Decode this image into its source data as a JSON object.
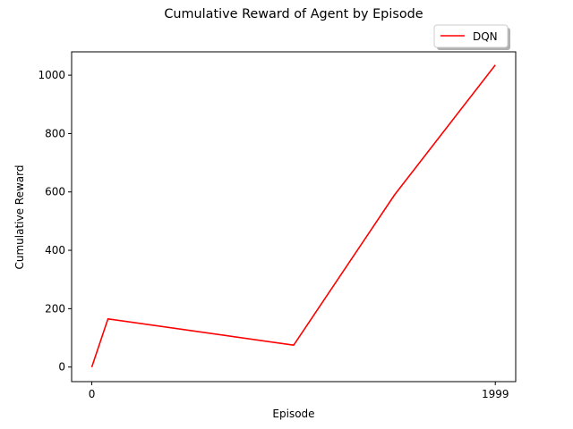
{
  "chart_data": {
    "type": "line",
    "title": "Cumulative Reward of Agent by Episode",
    "xlabel": "Episode",
    "ylabel": "Cumulative Reward",
    "xlim": [
      -100,
      2100
    ],
    "ylim": [
      -50,
      1080
    ],
    "x_ticks": [
      0,
      1999
    ],
    "y_ticks": [
      0,
      200,
      400,
      600,
      800,
      1000
    ],
    "grid": false,
    "legend_position": "top-right",
    "series": [
      {
        "name": "DQN",
        "color": "#ff0000",
        "x": [
          0,
          80,
          1000,
          1500,
          1999
        ],
        "y": [
          0,
          165,
          75,
          590,
          1035
        ]
      }
    ]
  }
}
